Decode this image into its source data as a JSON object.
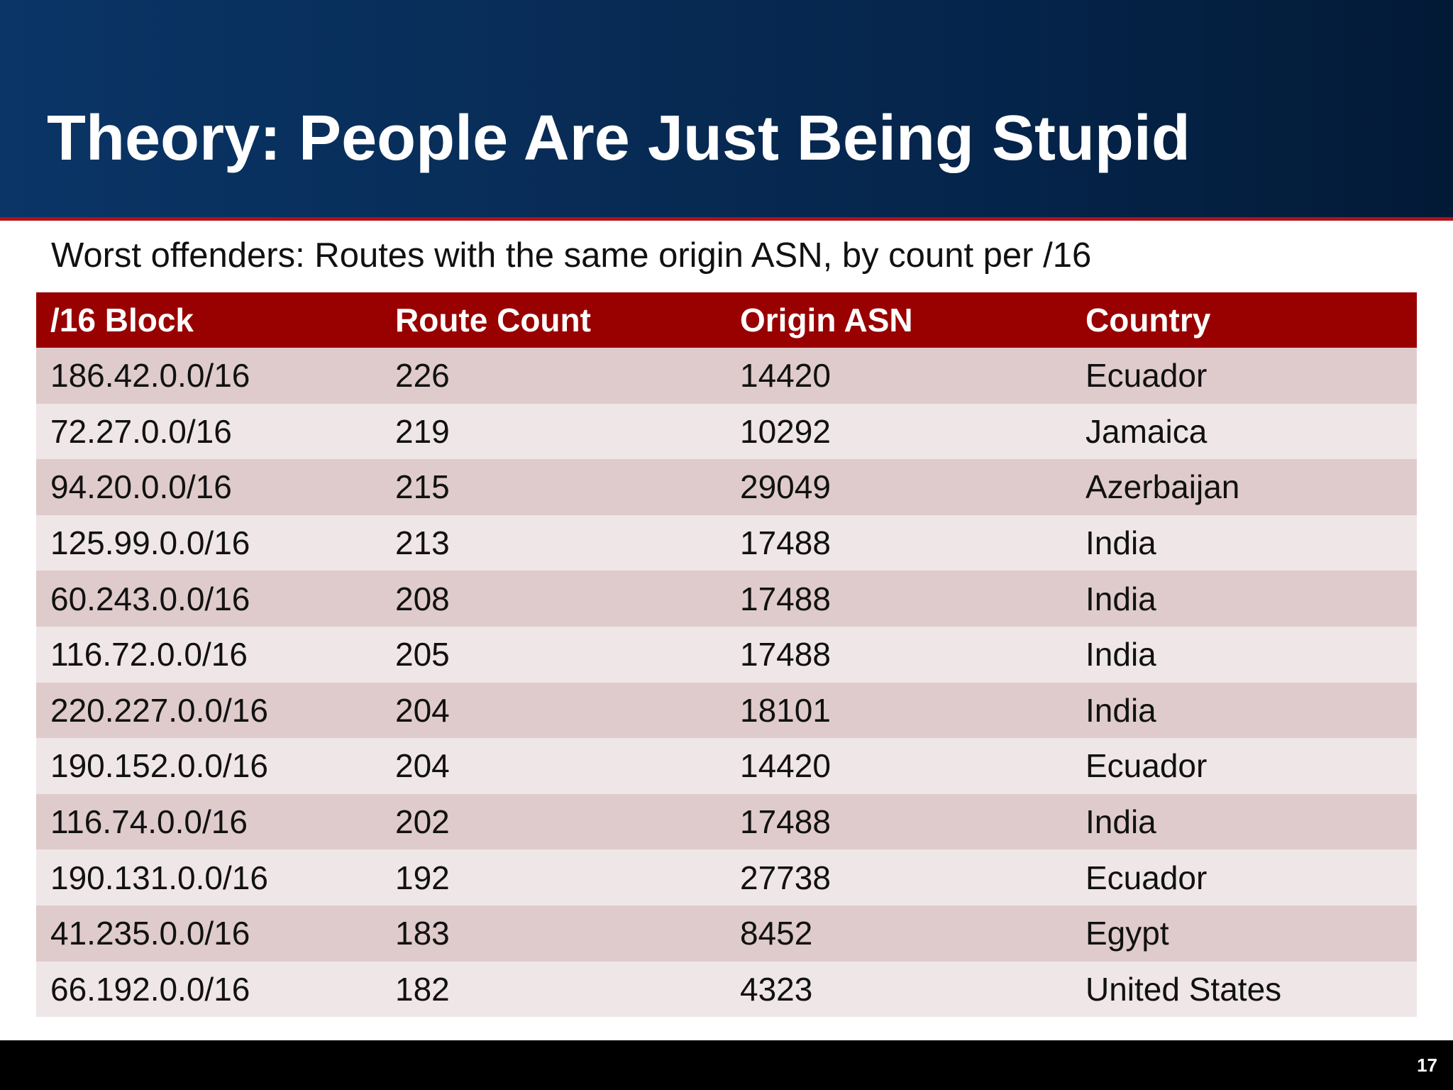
{
  "slide": {
    "title": "Theory: People Are Just Being Stupid",
    "subtitle": "Worst offenders: Routes with the same origin ASN, by count per /16",
    "page_number": "17"
  },
  "table": {
    "headers": [
      "/16 Block",
      "Route Count",
      "Origin ASN",
      "Country"
    ],
    "rows": [
      [
        "186.42.0.0/16",
        "226",
        "14420",
        "Ecuador"
      ],
      [
        "72.27.0.0/16",
        "219",
        "10292",
        "Jamaica"
      ],
      [
        "94.20.0.0/16",
        "215",
        "29049",
        "Azerbaijan"
      ],
      [
        "125.99.0.0/16",
        "213",
        "17488",
        "India"
      ],
      [
        "60.243.0.0/16",
        "208",
        "17488",
        "India"
      ],
      [
        "116.72.0.0/16",
        "205",
        "17488",
        "India"
      ],
      [
        "220.227.0.0/16",
        "204",
        "18101",
        "India"
      ],
      [
        "190.152.0.0/16",
        "204",
        "14420",
        "Ecuador"
      ],
      [
        "116.74.0.0/16",
        "202",
        "17488",
        "India"
      ],
      [
        "190.131.0.0/16",
        "192",
        "27738",
        "Ecuador"
      ],
      [
        "41.235.0.0/16",
        "183",
        "8452",
        "Egypt"
      ],
      [
        "66.192.0.0/16",
        "182",
        "4323",
        "United States"
      ]
    ]
  },
  "colors": {
    "header_gradient_start": "#0a3566",
    "header_gradient_end": "#031a36",
    "accent_red": "#b0121b",
    "table_header": "#990000",
    "row_odd": "#dfcbcb",
    "row_even": "#efe6e8",
    "footer": "#000000"
  }
}
